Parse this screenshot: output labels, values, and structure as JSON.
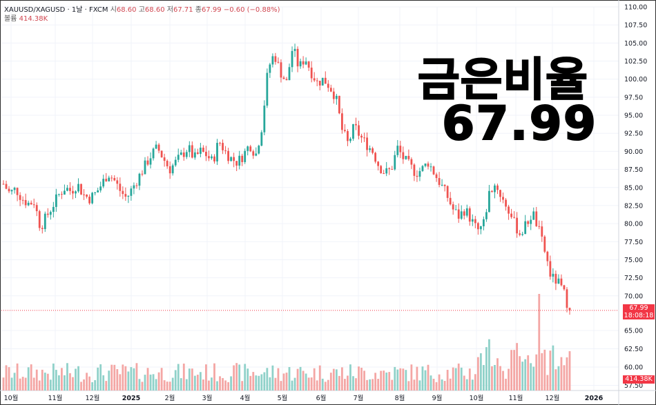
{
  "header": {
    "symbol": "XAUUSD/XAGUSD · 1날 · FXCM",
    "open_label": "시",
    "open": "68.60",
    "high_label": "고",
    "high": "68.60",
    "low_label": "저",
    "low": "67.71",
    "close_label": "종",
    "close": "67.99",
    "change": "−0.60 (−0.88%)",
    "volume_label": "볼륨",
    "volume": "414.38K"
  },
  "overlay": {
    "title": "금은비율",
    "value": "67.99"
  },
  "price_badge": {
    "price": "67.99",
    "countdown": "18:08:18"
  },
  "volume_badge": "414.38K",
  "colors": {
    "up": "#26a69a",
    "down": "#ef5350",
    "up_vol": "#8fd1c9",
    "down_vol": "#f4a6a4"
  },
  "chart_data": {
    "type": "candlestick",
    "title": "",
    "y_axis_side": "right",
    "ylim": [
      57.5,
      110.0
    ],
    "y_ticks": [
      "110.00",
      "107.50",
      "105.00",
      "102.50",
      "100.00",
      "97.50",
      "95.00",
      "92.50",
      "90.00",
      "87.50",
      "85.00",
      "82.50",
      "80.00",
      "77.50",
      "75.00",
      "72.50",
      "70.00",
      "65.00",
      "62.50",
      "60.00",
      "57.50"
    ],
    "x_ticks": [
      "10월",
      "11월",
      "12월",
      "2025",
      "2월",
      "3월",
      "4월",
      "5월",
      "6월",
      "7월",
      "8월",
      "9월",
      "10월",
      "11월",
      "12월",
      "2026"
    ],
    "last_price": 67.99,
    "grid": true,
    "series": [
      {
        "x": "2024-10",
        "values": [
          85.5,
          84.2,
          84.8,
          83.5,
          82.8
        ]
      },
      {
        "x": "2024-10/11",
        "values": [
          83.0,
          79.5,
          81.0,
          82.5,
          84.0
        ]
      },
      {
        "x": "2024-11",
        "values": [
          85.0,
          84.5,
          85.5,
          84.0,
          83.5,
          84.2
        ]
      },
      {
        "x": "2024-12",
        "values": [
          85.5,
          87.0,
          86.0,
          84.5,
          83.5,
          85.0,
          86.5
        ]
      },
      {
        "x": "2025-01",
        "values": [
          88.0,
          89.5,
          90.5,
          89.0,
          87.5,
          88.5
        ]
      },
      {
        "x": "2025-02",
        "values": [
          89.5,
          90.5,
          89.0,
          90.0,
          89.5,
          88.5
        ]
      },
      {
        "x": "2025-03",
        "values": [
          91.5,
          90.0,
          89.0,
          88.5,
          89.5,
          91.0,
          89.5
        ]
      },
      {
        "x": "2025-04",
        "values": [
          93.5,
          101.5,
          103.5,
          101.0,
          99.5,
          104.5,
          101.5
        ]
      },
      {
        "x": "2025-05",
        "values": [
          103.0,
          101.0,
          99.5,
          100.0,
          99.0
        ]
      },
      {
        "x": "2025-06",
        "values": [
          97.5,
          93.0,
          91.0,
          93.5,
          92.0
        ]
      },
      {
        "x": "2025-07",
        "values": [
          91.0,
          90.0,
          88.0,
          87.0,
          87.5
        ]
      },
      {
        "x": "2025-08",
        "values": [
          90.5,
          89.0,
          88.0,
          87.0,
          87.5
        ]
      },
      {
        "x": "2025-09",
        "values": [
          88.5,
          87.0,
          85.5,
          84.0,
          82.0,
          81.0
        ]
      },
      {
        "x": "2025-10",
        "values": [
          82.0,
          80.5,
          79.0,
          80.0,
          84.5,
          85.5
        ]
      },
      {
        "x": "2025-11",
        "values": [
          83.5,
          82.0,
          80.0,
          78.5,
          80.0,
          81.5
        ]
      },
      {
        "x": "2025-12",
        "values": [
          79.0,
          76.0,
          72.5,
          72.0,
          70.5,
          67.99
        ]
      }
    ]
  }
}
